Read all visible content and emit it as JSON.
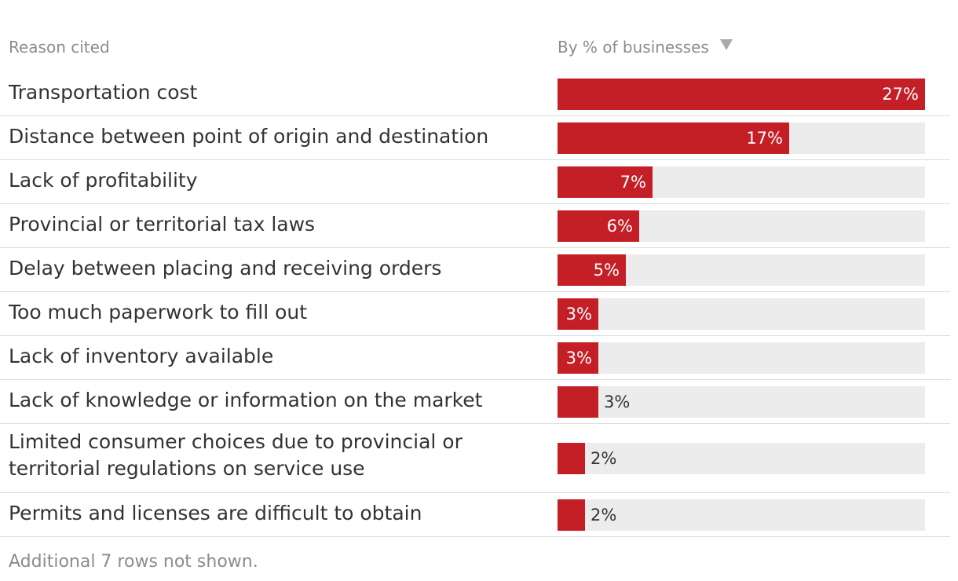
{
  "header": {
    "reason_label": "Reason cited",
    "value_label": "By % of businesses",
    "sort_icon": "sort-descending-icon"
  },
  "colors": {
    "bar": "#c41f26",
    "track": "#ececec",
    "inside_label": "#ffffff",
    "outside_label": "#333333"
  },
  "chart_data": {
    "type": "bar",
    "orientation": "horizontal",
    "xlim": [
      0,
      27
    ],
    "categories": [
      "Transportation cost",
      "Distance between point of origin and destination",
      "Lack of profitability",
      "Provincial or territorial tax laws",
      "Delay between placing and receiving orders",
      "Too much paperwork to fill out",
      "Lack of inventory available",
      "Lack of knowledge or information on the market",
      "Limited consumer choices due to provincial or territorial regulations on service use",
      "Permits and licenses are difficult to obtain"
    ],
    "values": [
      27,
      17,
      7,
      6,
      5,
      3,
      3,
      3,
      2,
      2
    ],
    "value_labels": [
      "27%",
      "17%",
      "7%",
      "6%",
      "5%",
      "3%",
      "3%",
      "3%",
      "2%",
      "2%"
    ],
    "label_inside": [
      true,
      true,
      true,
      true,
      true,
      true,
      true,
      false,
      false,
      false
    ]
  },
  "footnote": "Additional 7 rows not shown."
}
